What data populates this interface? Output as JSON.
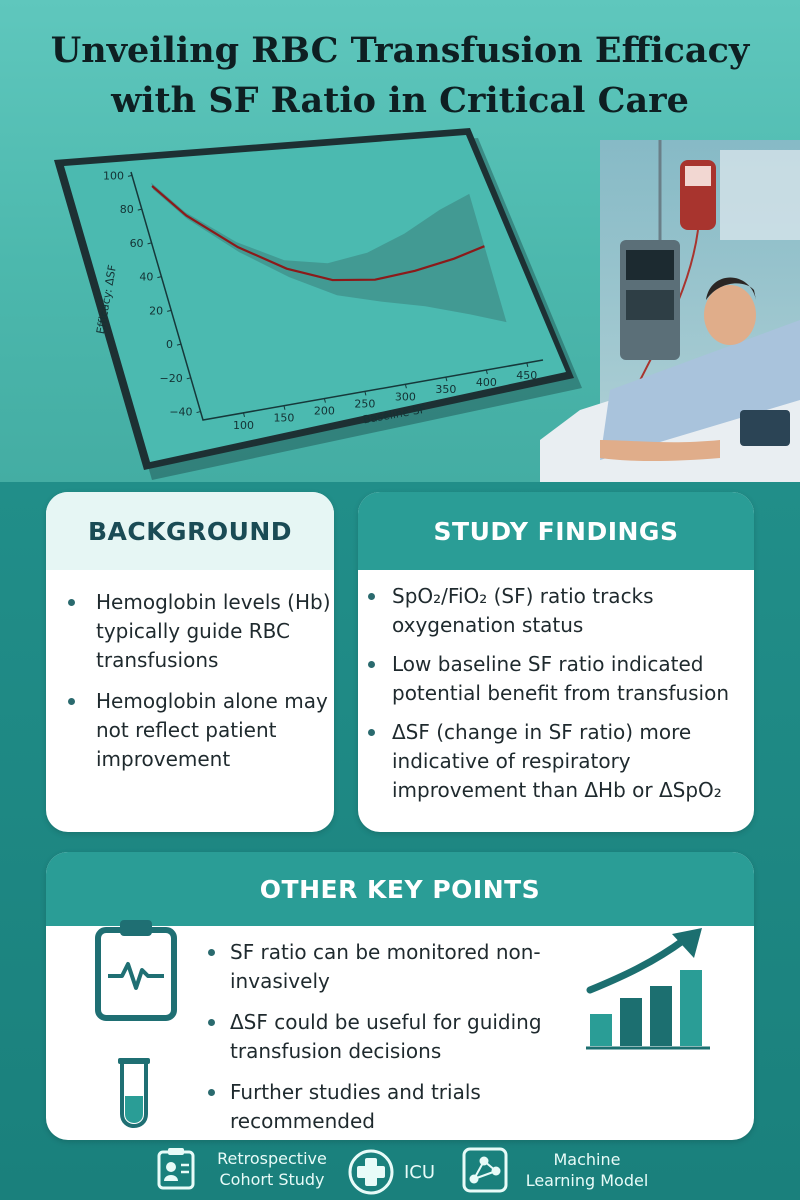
{
  "title": {
    "line1": "Unveiling RBC Transfusion Efficacy",
    "line2": "with SF Ratio in Critical Care"
  },
  "colors": {
    "teal_header": "#2a9d96",
    "dark_teal": "#1a807c",
    "curve": "#8b1a1a",
    "band": "#3f8f89"
  },
  "chart_data": {
    "type": "line",
    "xlabel": "Baseline SF",
    "ylabel": "Efficacy: ΔSF",
    "xticks": [
      100,
      150,
      200,
      250,
      300,
      350,
      400,
      450
    ],
    "yticks": [
      100,
      80,
      60,
      40,
      20,
      0,
      -20,
      -40
    ],
    "xlim": [
      50,
      470
    ],
    "ylim": [
      -45,
      102
    ],
    "grid": false,
    "series": [
      {
        "x": [
          70,
          100,
          150,
          200,
          250,
          300,
          350,
          400,
          440
        ],
        "y": [
          92,
          72,
          49,
          32,
          21,
          17,
          18,
          21,
          25
        ],
        "band_low": [
          90,
          70,
          46,
          27,
          12,
          4,
          -3,
          -12,
          -20
        ],
        "band_high": [
          94,
          74,
          52,
          37,
          31,
          33,
          40,
          50,
          56
        ]
      }
    ]
  },
  "background": {
    "heading": "BACKGROUND",
    "items": [
      "Hemoglobin levels (Hb) typically guide RBC transfusions",
      "Hemoglobin alone may not reflect patient improvement"
    ]
  },
  "findings": {
    "heading": "STUDY FINDINGS",
    "items": [
      "SpO₂/FiO₂ (SF) ratio tracks oxygenation status",
      "Low baseline SF ratio indicated potential benefit from transfusion",
      "ΔSF (change in SF ratio) more indicative of respiratory improvement than ΔHb or ΔSpO₂"
    ]
  },
  "other": {
    "heading": "OTHER KEY POINTS",
    "items": [
      "SF ratio can be monitored non-invasively",
      "ΔSF could be useful for guiding transfusion decisions",
      "Further studies and trials recommended"
    ]
  },
  "footer": {
    "items": [
      {
        "label": "Retrospective Cohort Study",
        "icon": "clipboard-person-icon"
      },
      {
        "label": "ICU",
        "icon": "medical-cross-icon"
      },
      {
        "label": "Machine Learning Model",
        "icon": "network-icon"
      }
    ]
  }
}
